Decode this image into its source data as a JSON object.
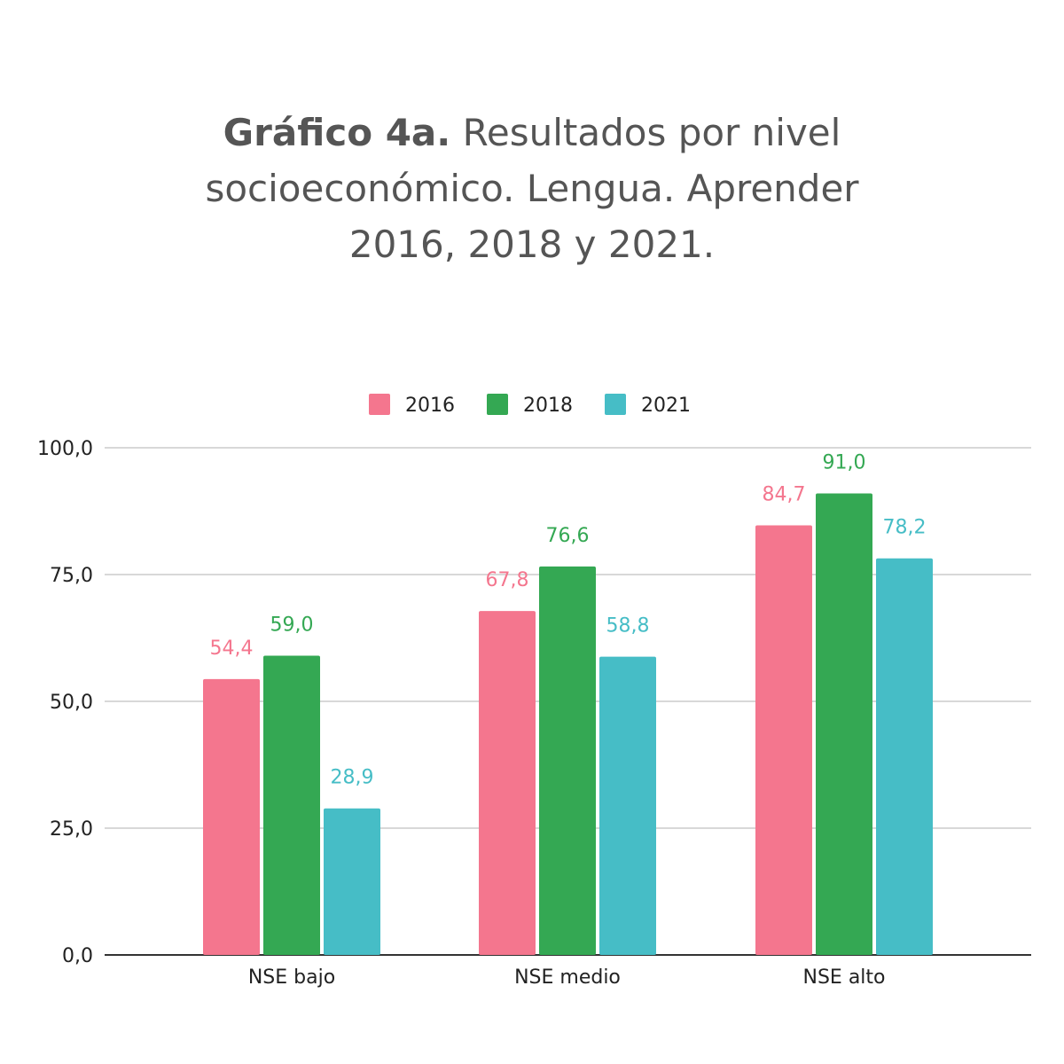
{
  "chart_data": {
    "type": "bar",
    "title_bold": "Gráfico 4a.",
    "title": "Resultados por nivel socioeconómico. Lengua. Aprender 2016, 2018 y 2021.",
    "title_lines": [
      "Resultados por nivel",
      "socioeconómico. Lengua. Aprender",
      "2016, 2018 y 2021."
    ],
    "categories": [
      "NSE bajo",
      "NSE medio",
      "NSE alto"
    ],
    "series": [
      {
        "name": "2016",
        "color": "#f4768e",
        "values": [
          54.4,
          67.8,
          84.7
        ],
        "labels": [
          "54,4",
          "67,8",
          "84,7"
        ]
      },
      {
        "name": "2018",
        "color": "#34a853",
        "values": [
          59.0,
          76.6,
          91.0
        ],
        "labels": [
          "59,0",
          "76,6",
          "91,0"
        ]
      },
      {
        "name": "2021",
        "color": "#46bdc6",
        "values": [
          28.9,
          58.8,
          78.2
        ],
        "labels": [
          "28,9",
          "58,8",
          "78,2"
        ]
      }
    ],
    "ylim": [
      0,
      100
    ],
    "yticks": [
      0,
      25,
      50,
      75,
      100
    ],
    "ytick_labels": [
      "0,0",
      "25,0",
      "50,0",
      "75,0",
      "100,0"
    ],
    "grid": true,
    "legend_position": "top-center",
    "xlabel": "",
    "ylabel": ""
  }
}
